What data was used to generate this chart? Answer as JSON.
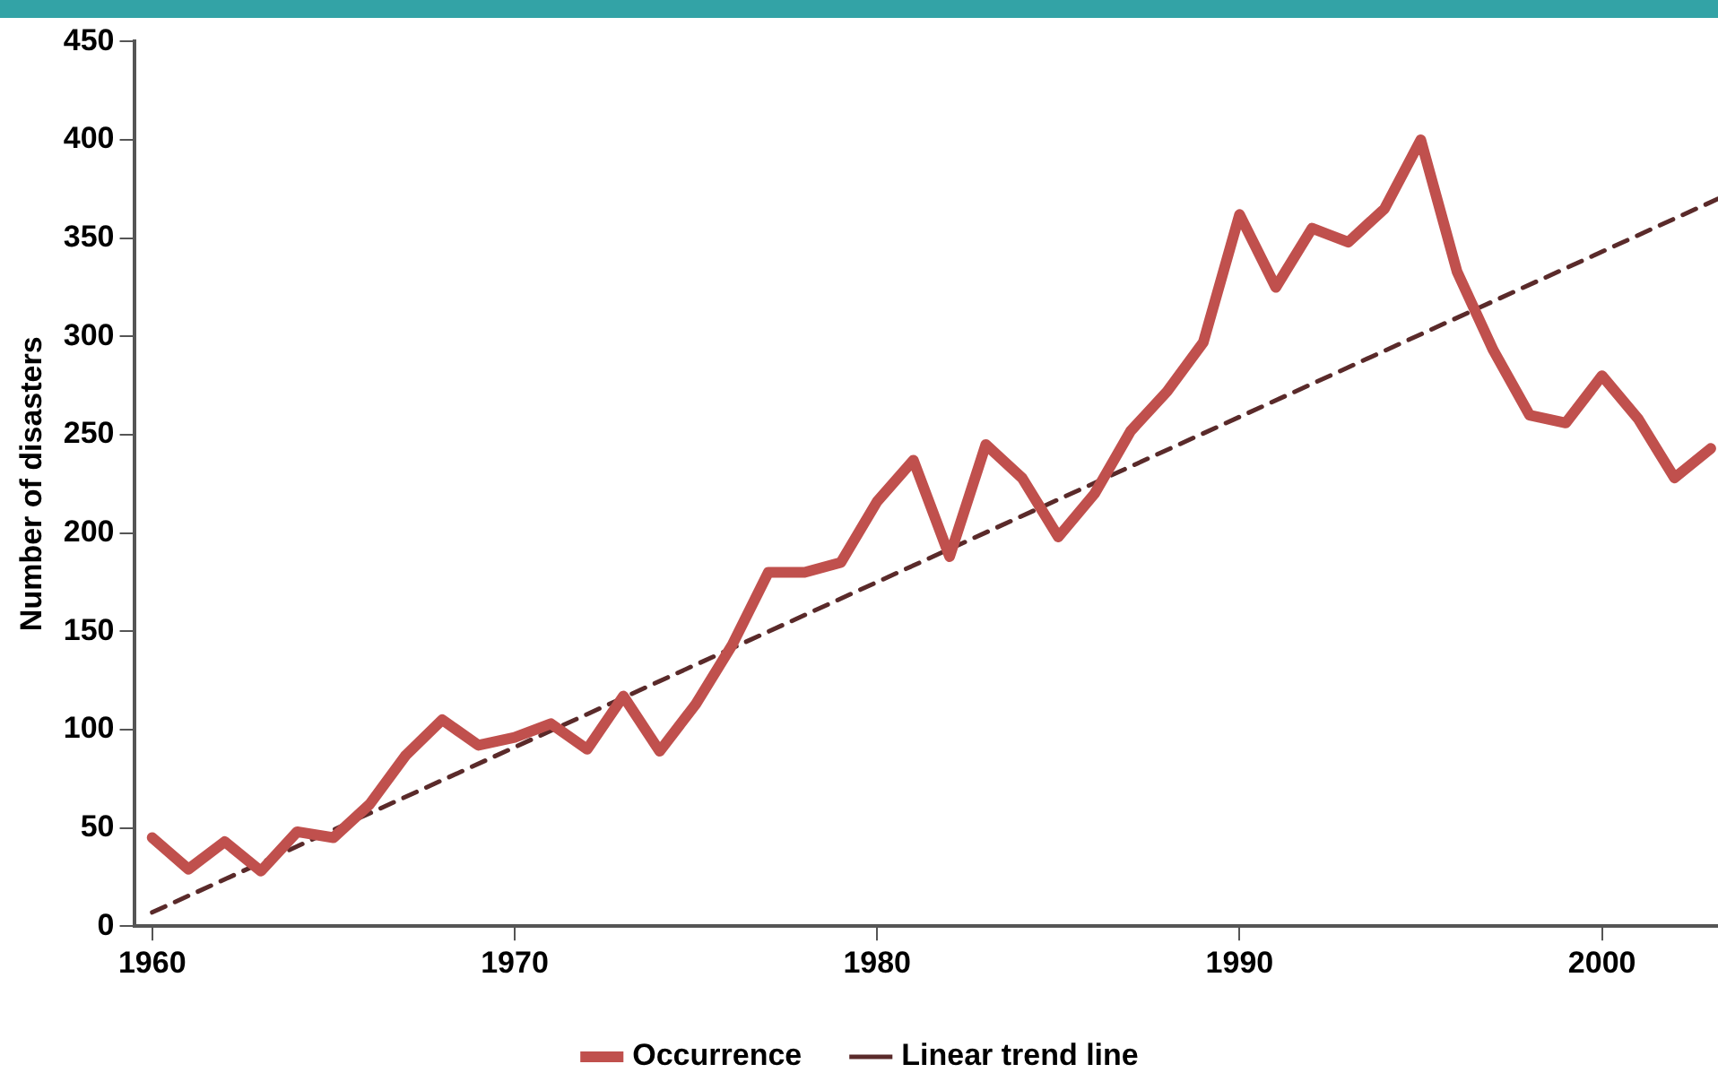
{
  "chart_data": {
    "type": "line",
    "ylabel": "Number of disasters",
    "x": [
      1960,
      1961,
      1962,
      1963,
      1964,
      1965,
      1966,
      1967,
      1968,
      1969,
      1970,
      1971,
      1972,
      1973,
      1974,
      1975,
      1976,
      1977,
      1978,
      1979,
      1980,
      1981,
      1982,
      1983,
      1984,
      1985,
      1986,
      1987,
      1988,
      1989,
      1990,
      1991,
      1992,
      1993,
      1994,
      1995,
      1996,
      1997,
      1998,
      1999,
      2000,
      2001,
      2002,
      2003
    ],
    "series": [
      {
        "name": "Occurrence",
        "color": "#c0504d",
        "values": [
          45,
          29,
          43,
          28,
          48,
          45,
          62,
          87,
          105,
          92,
          96,
          103,
          90,
          117,
          89,
          113,
          143,
          180,
          180,
          185,
          216,
          237,
          188,
          245,
          228,
          198,
          220,
          252,
          272,
          297,
          362,
          325,
          355,
          348,
          365,
          400,
          333,
          293,
          260,
          256,
          280,
          258,
          228,
          243
        ]
      },
      {
        "name": "Linear trend line",
        "color": "#5a2a2a",
        "line_style": "dashed",
        "x": [
          1960,
          2003.2
        ],
        "values": [
          7,
          370
        ]
      }
    ],
    "xlim": [
      1959.5,
      2003.2
    ],
    "xticks": [
      1960,
      1970,
      1980,
      1990,
      2000
    ],
    "ylim": [
      0,
      450
    ],
    "yticks": [
      0,
      50,
      100,
      150,
      200,
      250,
      300,
      350,
      400,
      450
    ],
    "grid": false,
    "legend": "bottom",
    "marker": "none",
    "line_style": "solid"
  }
}
